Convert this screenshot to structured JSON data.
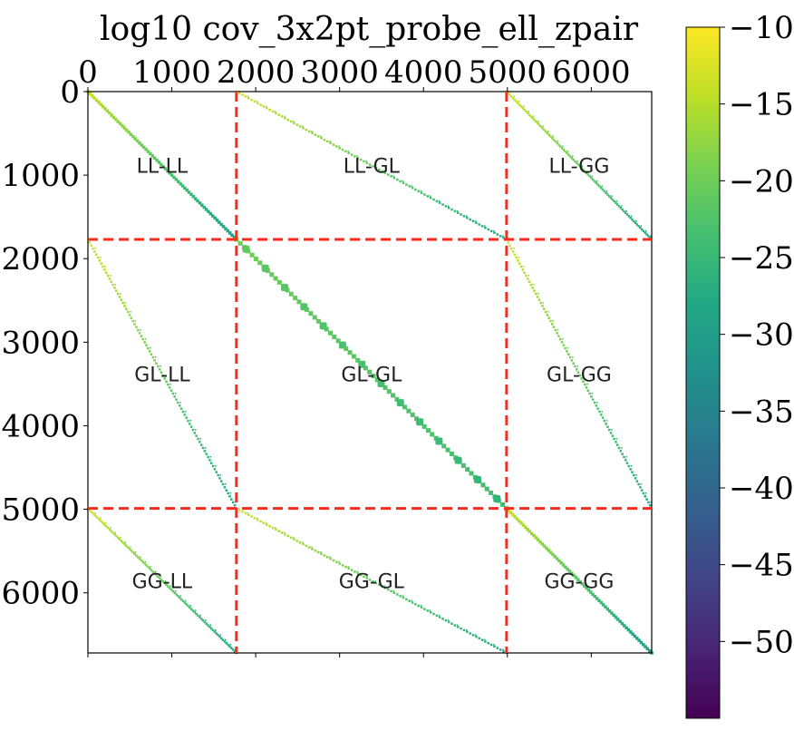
{
  "chart_data": {
    "type": "heatmap",
    "title": "log10 cov_3x2pt_probe_ell_zpair",
    "matrix_size": 6720,
    "x_axis": {
      "position": "top",
      "range": [
        0,
        6720
      ],
      "ticks": [
        0,
        1000,
        2000,
        3000,
        4000,
        5000,
        6000
      ],
      "tick_labels": [
        "0",
        "1000",
        "2000",
        "3000",
        "4000",
        "5000",
        "6000"
      ]
    },
    "y_axis": {
      "range": [
        0,
        6720
      ],
      "inverted": true,
      "ticks": [
        0,
        1000,
        2000,
        3000,
        4000,
        5000,
        6000
      ],
      "tick_labels": [
        "0",
        "1000",
        "2000",
        "3000",
        "4000",
        "5000",
        "6000"
      ]
    },
    "block_boundaries": [
      1770,
      4990
    ],
    "boundary_line_color": "#ff2a1a",
    "blocks": [
      {
        "label": "LL-LL",
        "row": 0,
        "col": 0
      },
      {
        "label": "LL-GL",
        "row": 0,
        "col": 1
      },
      {
        "label": "LL-GG",
        "row": 0,
        "col": 2
      },
      {
        "label": "GL-LL",
        "row": 1,
        "col": 0
      },
      {
        "label": "GL-GL",
        "row": 1,
        "col": 1
      },
      {
        "label": "GL-GG",
        "row": 1,
        "col": 2
      },
      {
        "label": "GG-LL",
        "row": 2,
        "col": 0
      },
      {
        "label": "GG-GL",
        "row": 2,
        "col": 1
      },
      {
        "label": "GG-GG",
        "row": 2,
        "col": 2
      }
    ],
    "colorbar": {
      "colormap": "viridis",
      "range": [
        -55,
        -10
      ],
      "ticks": [
        -10,
        -15,
        -20,
        -25,
        -30,
        -35,
        -40,
        -45,
        -50
      ],
      "tick_labels": [
        "−10",
        "−15",
        "−20",
        "−25",
        "−30",
        "−35",
        "−40",
        "−45",
        "−50"
      ]
    }
  }
}
